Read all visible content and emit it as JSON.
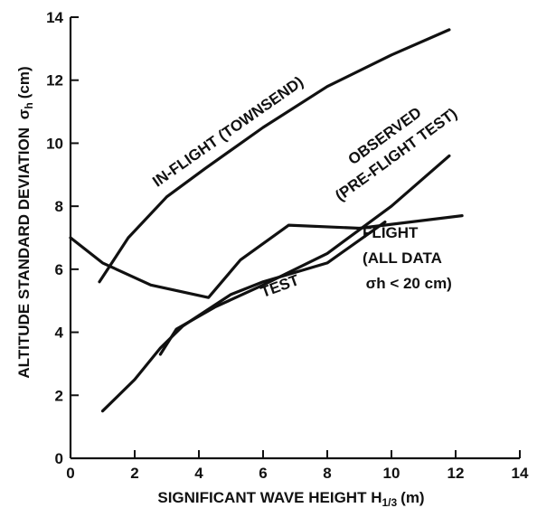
{
  "chart_data": {
    "type": "line",
    "xlabel": "SIGNIFICANT WAVE HEIGHT",
    "xlabel_symbol": "H",
    "xlabel_sub": "1/3",
    "xlabel_unit": "(m)",
    "ylabel": "ALTITUDE STANDARD DEVIATION",
    "ylabel_symbol": "σ",
    "ylabel_sub": "h",
    "ylabel_unit": "(cm)",
    "xlim": [
      0,
      14
    ],
    "ylim": [
      0,
      14
    ],
    "xticks": [
      "0",
      "2",
      "4",
      "6",
      "8",
      "10",
      "12",
      "14"
    ],
    "yticks": [
      "0",
      "2",
      "4",
      "6",
      "8",
      "10",
      "12",
      "14"
    ],
    "grid": false,
    "series": [
      {
        "key": "inflight",
        "points": [
          [
            0.9,
            5.6
          ],
          [
            1.8,
            7.0
          ],
          [
            3.0,
            8.3
          ],
          [
            4.2,
            9.2
          ],
          [
            6.0,
            10.5
          ],
          [
            8.0,
            11.8
          ],
          [
            10.0,
            12.8
          ],
          [
            11.8,
            13.6
          ]
        ]
      },
      {
        "key": "preflight",
        "points": [
          [
            2.8,
            3.3
          ],
          [
            3.3,
            4.1
          ],
          [
            4.5,
            4.8
          ],
          [
            6.0,
            5.5
          ],
          [
            8.0,
            6.5
          ],
          [
            10.0,
            8.0
          ],
          [
            11.8,
            9.6
          ]
        ]
      },
      {
        "key": "flight",
        "points": [
          [
            0.0,
            7.0
          ],
          [
            1.0,
            6.2
          ],
          [
            2.5,
            5.5
          ],
          [
            4.3,
            5.1
          ],
          [
            5.3,
            6.3
          ],
          [
            6.8,
            7.4
          ],
          [
            9.0,
            7.3
          ],
          [
            12.2,
            7.7
          ]
        ]
      },
      {
        "key": "test",
        "points": [
          [
            1.0,
            1.5
          ],
          [
            2.0,
            2.5
          ],
          [
            2.8,
            3.5
          ],
          [
            3.5,
            4.2
          ],
          [
            5.0,
            5.2
          ],
          [
            6.0,
            5.6
          ],
          [
            8.0,
            6.2
          ],
          [
            9.8,
            7.5
          ]
        ]
      }
    ],
    "annotations": [
      {
        "key": "inflight",
        "text": "IN-FLIGHT (TOWNSEND)",
        "x": 2.7,
        "y": 8.6,
        "angle": -35
      },
      {
        "key": "observed",
        "text": "OBSERVED",
        "x": 8.8,
        "y": 9.3,
        "angle": -36
      },
      {
        "key": "preflight_label",
        "text": "(PRE-FLIGHT TEST)",
        "x": 8.4,
        "y": 8.15,
        "angle": -36
      },
      {
        "key": "flight",
        "text": "FLIGHT",
        "x": 9.1,
        "y": 7.0,
        "angle": 0
      },
      {
        "key": "all_data",
        "text": "(ALL DATA",
        "x": 9.1,
        "y": 6.2,
        "angle": 0
      },
      {
        "key": "sigma_cond",
        "text": "σh < 20 cm)",
        "x": 9.2,
        "y": 5.4,
        "angle": 0
      },
      {
        "key": "test",
        "text": "TEST",
        "x": 6.0,
        "y": 5.1,
        "angle": -20
      }
    ]
  }
}
